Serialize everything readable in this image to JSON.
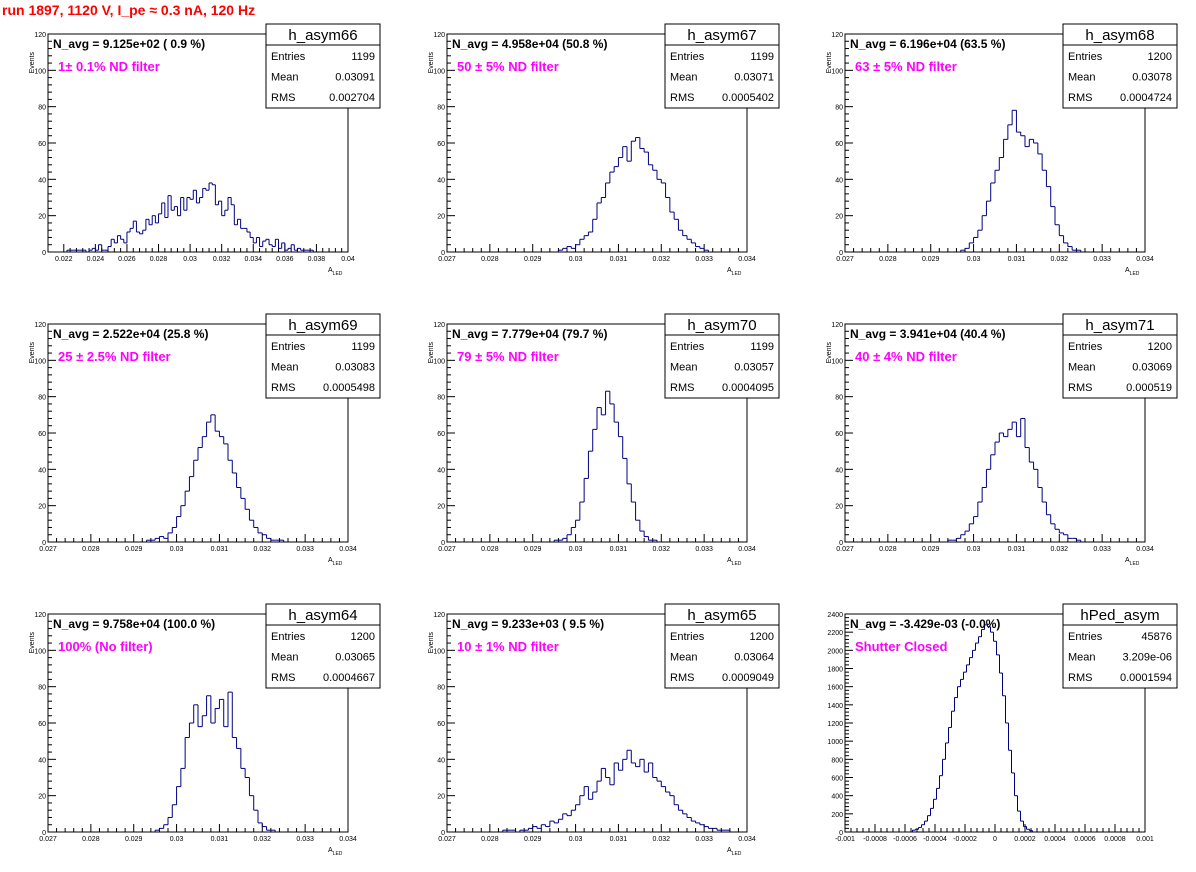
{
  "page_title": "run 1897,  1120 V, I_pe ≈ 0.3 nA, 120 Hz",
  "colors": {
    "title": "#ff0000",
    "annotation": "#ff00ff",
    "histogram": "#000080",
    "text": "#000000"
  },
  "chart_data": [
    {
      "type": "bar",
      "name": "h_asym66",
      "navg_label": "N_avg = 9.125e+02 ( 0.9 %)",
      "filter_label": "1± 0.1% ND filter",
      "stats": {
        "entries_label": "Entries",
        "entries": "1199",
        "mean_label": "Mean",
        "mean": "0.03091",
        "rms_label": "RMS",
        "rms": "0.002704"
      },
      "xlabel": "A_LED",
      "ylabel": "Events",
      "xlim": [
        0.021,
        0.04
      ],
      "ylim": [
        0,
        120
      ],
      "xticks": [
        0.022,
        0.024,
        0.026,
        0.028,
        0.03,
        0.032,
        0.034,
        0.036,
        0.038,
        0.04
      ],
      "xtick_labels": [
        "0.022",
        "0.024",
        "0.026",
        "0.028",
        "0.03",
        "0.032",
        "0.034",
        "0.036",
        "0.038",
        "0.04"
      ],
      "yticks": [
        0,
        20,
        40,
        60,
        80,
        100,
        120
      ],
      "ytick_labels": [
        "0",
        "20",
        "40",
        "60",
        "80",
        "100",
        "120"
      ],
      "bin_start": 0.021,
      "bin_width": 0.0002,
      "counts": [
        0,
        0,
        0,
        0,
        0,
        0,
        1,
        1,
        1,
        1,
        1,
        1,
        0,
        1,
        2,
        1,
        4,
        1,
        1,
        3,
        7,
        5,
        9,
        7,
        5,
        11,
        13,
        17,
        11,
        10,
        12,
        18,
        15,
        20,
        16,
        21,
        27,
        19,
        31,
        23,
        25,
        20,
        30,
        23,
        30,
        29,
        34,
        27,
        30,
        35,
        34,
        38,
        37,
        26,
        28,
        20,
        23,
        30,
        26,
        15,
        18,
        13,
        13,
        11,
        8,
        5,
        8,
        3,
        6,
        7,
        4,
        3,
        7,
        2,
        5,
        1,
        2,
        4,
        1,
        2,
        1,
        1,
        1,
        1,
        0,
        0,
        0,
        0,
        0,
        0,
        0,
        0,
        0,
        0,
        0
      ]
    },
    {
      "type": "bar",
      "name": "h_asym67",
      "navg_label": "N_avg = 4.958e+04 (50.8 %)",
      "filter_label": "50 ± 5% ND filter",
      "stats": {
        "entries_label": "Entries",
        "entries": "1199",
        "mean_label": "Mean",
        "mean": "0.03071",
        "rms_label": "RMS",
        "rms": "0.0005402"
      },
      "xlabel": "A_LED",
      "ylabel": "Events",
      "xlim": [
        0.027,
        0.034
      ],
      "ylim": [
        0,
        120
      ],
      "xticks": [
        0.027,
        0.028,
        0.029,
        0.03,
        0.031,
        0.032,
        0.033,
        0.034
      ],
      "xtick_labels": [
        "0.027",
        "0.028",
        "0.029",
        "0.03",
        "0.031",
        "0.032",
        "0.033",
        "0.034"
      ],
      "yticks": [
        0,
        20,
        40,
        60,
        80,
        100,
        120
      ],
      "ytick_labels": [
        "0",
        "20",
        "40",
        "60",
        "80",
        "100",
        "120"
      ],
      "bin_start": 0.027,
      "bin_width": 0.0001,
      "counts": [
        0,
        0,
        0,
        0,
        0,
        0,
        0,
        0,
        0,
        0,
        0,
        0,
        0,
        0,
        0,
        0,
        0,
        0,
        0,
        0,
        0,
        0,
        0,
        0,
        0,
        0,
        1,
        2,
        3,
        2,
        4,
        7,
        9,
        11,
        18,
        27,
        30,
        38,
        44,
        47,
        52,
        58,
        50,
        61,
        63,
        57,
        55,
        48,
        45,
        40,
        38,
        30,
        22,
        18,
        12,
        9,
        7,
        5,
        3,
        2,
        1,
        0,
        0,
        0,
        0,
        0,
        0,
        0,
        0,
        0
      ]
    },
    {
      "type": "bar",
      "name": "h_asym68",
      "navg_label": "N_avg = 6.196e+04 (63.5 %)",
      "filter_label": "63 ± 5% ND filter",
      "stats": {
        "entries_label": "Entries",
        "entries": "1200",
        "mean_label": "Mean",
        "mean": "0.03078",
        "rms_label": "RMS",
        "rms": "0.0004724"
      },
      "xlabel": "A_LED",
      "ylabel": "Events",
      "xlim": [
        0.027,
        0.034
      ],
      "ylim": [
        0,
        120
      ],
      "xticks": [
        0.027,
        0.028,
        0.029,
        0.03,
        0.031,
        0.032,
        0.033,
        0.034
      ],
      "xtick_labels": [
        "0.027",
        "0.028",
        "0.029",
        "0.03",
        "0.031",
        "0.032",
        "0.033",
        "0.034"
      ],
      "yticks": [
        0,
        20,
        40,
        60,
        80,
        100,
        120
      ],
      "ytick_labels": [
        "0",
        "20",
        "40",
        "60",
        "80",
        "100",
        "120"
      ],
      "bin_start": 0.027,
      "bin_width": 0.0001,
      "counts": [
        0,
        0,
        0,
        0,
        0,
        0,
        0,
        0,
        0,
        0,
        0,
        0,
        0,
        0,
        0,
        0,
        0,
        0,
        0,
        0,
        0,
        0,
        0,
        0,
        0,
        0,
        0,
        1,
        2,
        5,
        8,
        12,
        20,
        28,
        38,
        45,
        52,
        62,
        70,
        78,
        66,
        64,
        58,
        62,
        60,
        54,
        45,
        36,
        25,
        15,
        9,
        5,
        3,
        1,
        1,
        0,
        0,
        0,
        0,
        0,
        0,
        0,
        0,
        0,
        0,
        0,
        0,
        0,
        0,
        0
      ]
    },
    {
      "type": "bar",
      "name": "h_asym69",
      "navg_label": "N_avg = 2.522e+04 (25.8 %)",
      "filter_label": "25 ± 2.5% ND filter",
      "stats": {
        "entries_label": "Entries",
        "entries": "1199",
        "mean_label": "Mean",
        "mean": "0.03083",
        "rms_label": "RMS",
        "rms": "0.0005498"
      },
      "xlabel": "A_LED",
      "ylabel": "Events",
      "xlim": [
        0.027,
        0.034
      ],
      "ylim": [
        0,
        120
      ],
      "xticks": [
        0.027,
        0.028,
        0.029,
        0.03,
        0.031,
        0.032,
        0.033,
        0.034
      ],
      "xtick_labels": [
        "0.027",
        "0.028",
        "0.029",
        "0.03",
        "0.031",
        "0.032",
        "0.033",
        "0.034"
      ],
      "yticks": [
        0,
        20,
        40,
        60,
        80,
        100,
        120
      ],
      "ytick_labels": [
        "0",
        "20",
        "40",
        "60",
        "80",
        "100",
        "120"
      ],
      "bin_start": 0.027,
      "bin_width": 0.0001,
      "counts": [
        0,
        0,
        0,
        0,
        0,
        0,
        0,
        0,
        0,
        0,
        0,
        0,
        0,
        0,
        0,
        0,
        0,
        0,
        0,
        0,
        0,
        0,
        0,
        1,
        1,
        2,
        3,
        2,
        5,
        8,
        14,
        20,
        28,
        36,
        45,
        52,
        58,
        66,
        70,
        61,
        58,
        54,
        45,
        38,
        30,
        24,
        18,
        12,
        8,
        5,
        4,
        2,
        1,
        1,
        1,
        0,
        0,
        0,
        0,
        0,
        0,
        0,
        0,
        0,
        0,
        0,
        0,
        0,
        0,
        0
      ]
    },
    {
      "type": "bar",
      "name": "h_asym70",
      "navg_label": "N_avg = 7.779e+04 (79.7 %)",
      "filter_label": "79 ± 5% ND filter",
      "stats": {
        "entries_label": "Entries",
        "entries": "1199",
        "mean_label": "Mean",
        "mean": "0.03057",
        "rms_label": "RMS",
        "rms": "0.0004095"
      },
      "xlabel": "A_LED",
      "ylabel": "Events",
      "xlim": [
        0.027,
        0.034
      ],
      "ylim": [
        0,
        120
      ],
      "xticks": [
        0.027,
        0.028,
        0.029,
        0.03,
        0.031,
        0.032,
        0.033,
        0.034
      ],
      "xtick_labels": [
        "0.027",
        "0.028",
        "0.029",
        "0.03",
        "0.031",
        "0.032",
        "0.033",
        "0.034"
      ],
      "yticks": [
        0,
        20,
        40,
        60,
        80,
        100,
        120
      ],
      "ytick_labels": [
        "0",
        "20",
        "40",
        "60",
        "80",
        "100",
        "120"
      ],
      "bin_start": 0.027,
      "bin_width": 0.0001,
      "counts": [
        0,
        0,
        0,
        0,
        0,
        0,
        0,
        0,
        0,
        0,
        0,
        0,
        0,
        0,
        0,
        0,
        0,
        0,
        0,
        0,
        0,
        0,
        0,
        0,
        0,
        1,
        1,
        2,
        4,
        8,
        12,
        22,
        35,
        50,
        62,
        74,
        70,
        83,
        76,
        66,
        58,
        46,
        32,
        22,
        12,
        6,
        3,
        1,
        1,
        0,
        0,
        0,
        0,
        0,
        0,
        0,
        0,
        0,
        0,
        0,
        0,
        0,
        0,
        0,
        0,
        0,
        0,
        0,
        0,
        0
      ]
    },
    {
      "type": "bar",
      "name": "h_asym71",
      "navg_label": "N_avg = 3.941e+04 (40.4 %)",
      "filter_label": "40 ± 4% ND filter",
      "stats": {
        "entries_label": "Entries",
        "entries": "1200",
        "mean_label": "Mean",
        "mean": "0.03069",
        "rms_label": "RMS",
        "rms": "0.000519"
      },
      "xlabel": "A_LED",
      "ylabel": "Events",
      "xlim": [
        0.027,
        0.034
      ],
      "ylim": [
        0,
        120
      ],
      "xticks": [
        0.027,
        0.028,
        0.029,
        0.03,
        0.031,
        0.032,
        0.033,
        0.034
      ],
      "xtick_labels": [
        "0.027",
        "0.028",
        "0.029",
        "0.03",
        "0.031",
        "0.032",
        "0.033",
        "0.034"
      ],
      "yticks": [
        0,
        20,
        40,
        60,
        80,
        100,
        120
      ],
      "ytick_labels": [
        "0",
        "20",
        "40",
        "60",
        "80",
        "100",
        "120"
      ],
      "bin_start": 0.027,
      "bin_width": 0.0001,
      "counts": [
        0,
        0,
        0,
        0,
        0,
        0,
        0,
        0,
        0,
        0,
        0,
        0,
        0,
        0,
        0,
        0,
        0,
        0,
        0,
        0,
        0,
        0,
        0,
        0,
        1,
        1,
        2,
        4,
        6,
        10,
        14,
        22,
        30,
        40,
        48,
        55,
        60,
        58,
        62,
        66,
        58,
        68,
        52,
        44,
        40,
        30,
        22,
        15,
        10,
        7,
        5,
        4,
        2,
        2,
        1,
        0,
        0,
        0,
        0,
        0,
        0,
        0,
        0,
        0,
        0,
        0,
        0,
        0,
        0,
        0
      ]
    },
    {
      "type": "bar",
      "name": "h_asym64",
      "navg_label": "N_avg = 9.758e+04 (100.0 %)",
      "filter_label": "100% (No filter)",
      "stats": {
        "entries_label": "Entries",
        "entries": "1200",
        "mean_label": "Mean",
        "mean": "0.03065",
        "rms_label": "RMS",
        "rms": "0.0004667"
      },
      "xlabel": "A_LED",
      "ylabel": "Events",
      "xlim": [
        0.027,
        0.034
      ],
      "ylim": [
        0,
        120
      ],
      "xticks": [
        0.027,
        0.028,
        0.029,
        0.03,
        0.031,
        0.032,
        0.033,
        0.034
      ],
      "xtick_labels": [
        "0.027",
        "0.028",
        "0.029",
        "0.03",
        "0.031",
        "0.032",
        "0.033",
        "0.034"
      ],
      "yticks": [
        0,
        20,
        40,
        60,
        80,
        100,
        120
      ],
      "ytick_labels": [
        "0",
        "20",
        "40",
        "60",
        "80",
        "100",
        "120"
      ],
      "bin_start": 0.027,
      "bin_width": 0.0001,
      "counts": [
        0,
        0,
        0,
        0,
        0,
        0,
        0,
        0,
        0,
        0,
        0,
        0,
        0,
        0,
        0,
        0,
        0,
        0,
        0,
        0,
        0,
        0,
        0,
        0,
        0,
        1,
        2,
        4,
        8,
        15,
        25,
        35,
        52,
        60,
        70,
        58,
        64,
        75,
        60,
        68,
        73,
        58,
        77,
        52,
        46,
        35,
        30,
        20,
        12,
        5,
        3,
        1,
        1,
        0,
        0,
        0,
        0,
        0,
        0,
        0,
        0,
        0,
        0,
        0,
        0,
        0,
        0,
        0,
        0,
        0
      ]
    },
    {
      "type": "bar",
      "name": "h_asym65",
      "navg_label": "N_avg = 9.233e+03 ( 9.5 %)",
      "filter_label": "10 ± 1% ND filter",
      "stats": {
        "entries_label": "Entries",
        "entries": "1200",
        "mean_label": "Mean",
        "mean": "0.03064",
        "rms_label": "RMS",
        "rms": "0.0009049"
      },
      "xlabel": "A_LED",
      "ylabel": "Events",
      "xlim": [
        0.027,
        0.034
      ],
      "ylim": [
        0,
        120
      ],
      "xticks": [
        0.027,
        0.028,
        0.029,
        0.03,
        0.031,
        0.032,
        0.033,
        0.034
      ],
      "xtick_labels": [
        "0.027",
        "0.028",
        "0.029",
        "0.03",
        "0.031",
        "0.032",
        "0.033",
        "0.034"
      ],
      "yticks": [
        0,
        20,
        40,
        60,
        80,
        100,
        120
      ],
      "ytick_labels": [
        "0",
        "20",
        "40",
        "60",
        "80",
        "100",
        "120"
      ],
      "bin_start": 0.027,
      "bin_width": 0.0001,
      "counts": [
        0,
        0,
        0,
        0,
        0,
        0,
        0,
        0,
        0,
        0,
        0,
        0,
        0,
        1,
        1,
        1,
        0,
        1,
        1,
        2,
        3,
        2,
        4,
        3,
        6,
        5,
        7,
        10,
        9,
        12,
        15,
        20,
        25,
        18,
        22,
        28,
        35,
        30,
        26,
        38,
        34,
        40,
        45,
        38,
        36,
        40,
        33,
        38,
        30,
        28,
        25,
        22,
        20,
        15,
        12,
        10,
        8,
        6,
        5,
        4,
        3,
        2,
        2,
        1,
        1,
        1,
        0,
        0,
        0,
        0
      ]
    },
    {
      "type": "bar",
      "name": "hPed_asym",
      "navg_label": "N_avg = -3.429e-03 (-0.0%)",
      "filter_label": "Shutter Closed",
      "stats": {
        "entries_label": "Entries",
        "entries": "45876",
        "mean_label": "Mean",
        "mean": "3.209e-06",
        "rms_label": "RMS",
        "rms": "0.0001594"
      },
      "xlabel": "",
      "ylabel": "",
      "xlim": [
        -0.001,
        0.001
      ],
      "ylim": [
        0,
        2400
      ],
      "xticks": [
        -0.001,
        -0.0008,
        -0.0006,
        -0.0004,
        -0.0002,
        0,
        0.0002,
        0.0004,
        0.0006,
        0.0008,
        0.001
      ],
      "xtick_labels": [
        "-0.001",
        "-0.0008",
        "-0.0006",
        "-0.0004",
        "-0.0002",
        "0",
        "0.0002",
        "0.0004",
        "0.0006",
        "0.0008",
        "0.001"
      ],
      "yticks": [
        0,
        200,
        400,
        600,
        800,
        1000,
        1200,
        1400,
        1600,
        1800,
        2000,
        2200,
        2400
      ],
      "ytick_labels": [
        "0",
        "200",
        "400",
        "600",
        "800",
        "1000",
        "1200",
        "1400",
        "1600",
        "1800",
        "2000",
        "2200",
        "2400"
      ],
      "bin_start": -0.00055,
      "bin_width": 2e-05,
      "counts": [
        20,
        30,
        50,
        80,
        120,
        180,
        260,
        360,
        480,
        620,
        800,
        980,
        1150,
        1330,
        1480,
        1600,
        1680,
        1760,
        1840,
        1920,
        2000,
        2080,
        2150,
        2230,
        2280,
        2260,
        2200,
        2100,
        1950,
        1750,
        1500,
        1200,
        900,
        650,
        400,
        230,
        120,
        60,
        30,
        15
      ]
    }
  ]
}
